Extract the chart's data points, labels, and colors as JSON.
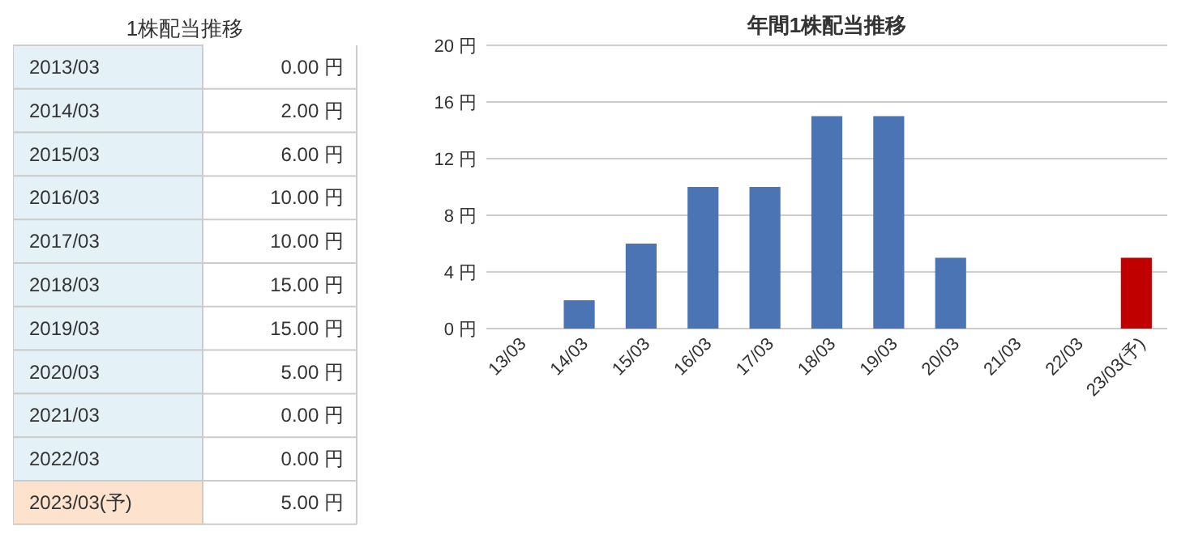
{
  "chart_data": [
    {
      "type": "other",
      "title": "1株配当推移",
      "categories": [
        "2013/03",
        "2014/03",
        "2015/03",
        "2016/03",
        "2017/03",
        "2018/03",
        "2019/03",
        "2020/03",
        "2021/03",
        "2022/03",
        "2023/03(予)"
      ],
      "value_labels": [
        "0.00 円",
        "2.00 円",
        "6.00 円",
        "10.00 円",
        "10.00 円",
        "15.00 円",
        "15.00 円",
        "5.00 円",
        "0.00 円",
        "0.00 円",
        "5.00 円"
      ],
      "colors": [
        "#e4f2f7",
        "#e4f2f7",
        "#e4f2f7",
        "#e4f2f7",
        "#e4f2f7",
        "#e4f2f7",
        "#e4f2f7",
        "#e4f2f7",
        "#e4f2f7",
        "#e4f2f7",
        "#fde3cd"
      ]
    },
    {
      "type": "bar",
      "title": "年間1株配当推移",
      "categories": [
        "13/03",
        "14/03",
        "15/03",
        "16/03",
        "17/03",
        "18/03",
        "19/03",
        "20/03",
        "21/03",
        "22/03",
        "23/03(予)"
      ],
      "values": [
        0,
        2,
        6,
        10,
        10,
        15,
        15,
        5,
        0,
        0,
        5
      ],
      "colors": [
        "#4a74b4",
        "#4a74b4",
        "#4a74b4",
        "#4a74b4",
        "#4a74b4",
        "#4a74b4",
        "#4a74b4",
        "#4a74b4",
        "#4a74b4",
        "#4a74b4",
        "#c00000"
      ],
      "ylim": [
        0,
        20
      ],
      "yticks": [
        {
          "value": 0,
          "label": "0 円"
        },
        {
          "value": 4,
          "label": "4 円"
        },
        {
          "value": 8,
          "label": "8 円"
        },
        {
          "value": 12,
          "label": "12 円"
        },
        {
          "value": 16,
          "label": "16 円"
        },
        {
          "value": 20,
          "label": "20 円"
        }
      ],
      "grid": "y"
    }
  ]
}
